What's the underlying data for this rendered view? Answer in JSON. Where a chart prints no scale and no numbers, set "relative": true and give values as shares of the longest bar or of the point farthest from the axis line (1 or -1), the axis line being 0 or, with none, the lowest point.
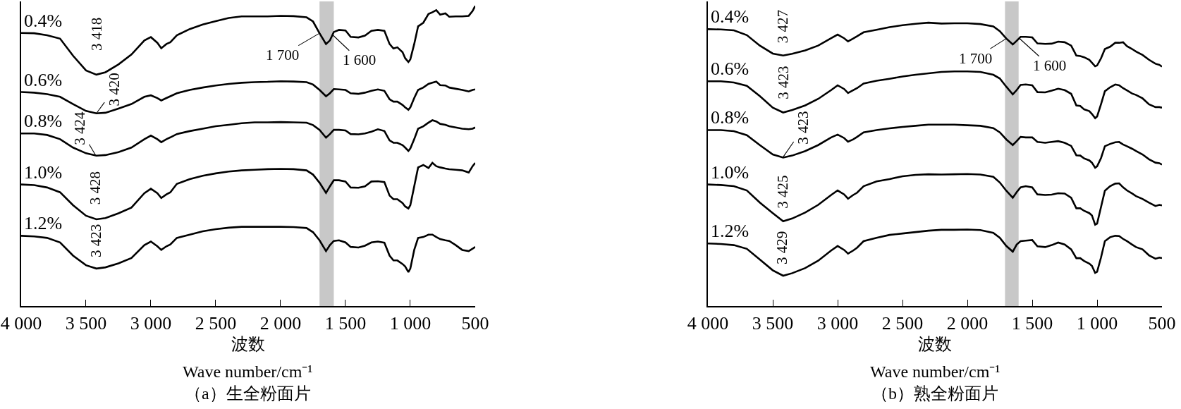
{
  "chart_data": [
    {
      "type": "line",
      "title": "（a）生全粉面片",
      "xlabel": "波数\nWave number/cm⁻¹",
      "relative": true,
      "tick_labels": "x",
      "grid": false,
      "legend": false,
      "marker": "none",
      "line_style": "solid",
      "xlim": [
        4000,
        500
      ],
      "xticks": [
        {
          "value": 4000,
          "label": "4 000"
        },
        {
          "value": 3500,
          "label": "3 500"
        },
        {
          "value": 3000,
          "label": "3 000"
        },
        {
          "value": 2500,
          "label": "2 500"
        },
        {
          "value": 2000,
          "label": "2 000"
        },
        {
          "value": 1500,
          "label": "1 500"
        },
        {
          "value": 1000,
          "label": "1 000"
        },
        500
      ],
      "x": [
        4000,
        3900,
        3800,
        3700,
        3600,
        3500,
        3420,
        3350,
        3250,
        3150,
        3050,
        3000,
        2950,
        2920,
        2880,
        2850,
        2800,
        2700,
        2600,
        2500,
        2400,
        2300,
        2200,
        2100,
        2000,
        1900,
        1800,
        1750,
        1700,
        1650,
        1620,
        1590,
        1550,
        1500,
        1460,
        1400,
        1350,
        1300,
        1250,
        1200,
        1160,
        1130,
        1100,
        1060,
        1040,
        1015,
        1000,
        970,
        940,
        900,
        860,
        830,
        800,
        770,
        730,
        700,
        650,
        600,
        550,
        520,
        500
      ],
      "series": [
        {
          "name": "0.4%",
          "color": "#000000",
          "values": [
            0.91,
            0.909,
            0.902,
            0.891,
            0.834,
            0.785,
            0.771,
            0.779,
            0.805,
            0.838,
            0.885,
            0.896,
            0.877,
            0.859,
            0.873,
            0.879,
            0.902,
            0.923,
            0.938,
            0.949,
            0.96,
            0.965,
            0.965,
            0.965,
            0.967,
            0.966,
            0.962,
            0.948,
            0.909,
            0.873,
            0.885,
            0.913,
            0.92,
            0.918,
            0.897,
            0.895,
            0.901,
            0.917,
            0.92,
            0.917,
            0.873,
            0.858,
            0.862,
            0.846,
            0.826,
            0.813,
            0.822,
            0.873,
            0.932,
            0.944,
            0.973,
            0.979,
            0.986,
            0.971,
            0.975,
            0.964,
            0.965,
            0.965,
            0.967,
            0.983,
            1.0
          ]
        },
        {
          "name": "0.6%",
          "color": "#000000",
          "values": [
            0.713,
            0.711,
            0.706,
            0.697,
            0.673,
            0.65,
            0.642,
            0.644,
            0.658,
            0.673,
            0.697,
            0.702,
            0.693,
            0.685,
            0.693,
            0.699,
            0.709,
            0.72,
            0.728,
            0.735,
            0.74,
            0.744,
            0.746,
            0.747,
            0.749,
            0.748,
            0.746,
            0.738,
            0.72,
            0.699,
            0.709,
            0.723,
            0.722,
            0.72,
            0.709,
            0.707,
            0.711,
            0.717,
            0.722,
            0.717,
            0.689,
            0.681,
            0.681,
            0.67,
            0.662,
            0.654,
            0.662,
            0.693,
            0.72,
            0.728,
            0.74,
            0.744,
            0.748,
            0.736,
            0.735,
            0.728,
            0.724,
            0.72,
            0.715,
            0.72,
            0.722
          ]
        },
        {
          "name": "0.8%",
          "color": "#000000",
          "values": [
            0.575,
            0.575,
            0.57,
            0.556,
            0.528,
            0.509,
            0.501,
            0.503,
            0.513,
            0.528,
            0.556,
            0.568,
            0.556,
            0.546,
            0.556,
            0.562,
            0.573,
            0.583,
            0.591,
            0.599,
            0.604,
            0.609,
            0.612,
            0.612,
            0.613,
            0.612,
            0.611,
            0.603,
            0.587,
            0.561,
            0.573,
            0.587,
            0.587,
            0.585,
            0.573,
            0.572,
            0.575,
            0.581,
            0.589,
            0.583,
            0.552,
            0.544,
            0.544,
            0.536,
            0.528,
            0.517,
            0.525,
            0.556,
            0.591,
            0.599,
            0.611,
            0.619,
            0.615,
            0.607,
            0.604,
            0.599,
            0.595,
            0.591,
            0.589,
            0.591,
            0.595
          ]
        },
        {
          "name": "1.0%",
          "color": "#000000",
          "values": [
            0.405,
            0.403,
            0.395,
            0.379,
            0.336,
            0.301,
            0.289,
            0.293,
            0.309,
            0.328,
            0.376,
            0.391,
            0.376,
            0.36,
            0.372,
            0.379,
            0.407,
            0.423,
            0.434,
            0.442,
            0.448,
            0.452,
            0.454,
            0.456,
            0.457,
            0.456,
            0.452,
            0.438,
            0.411,
            0.377,
            0.399,
            0.419,
            0.419,
            0.415,
            0.395,
            0.394,
            0.399,
            0.415,
            0.416,
            0.413,
            0.368,
            0.356,
            0.356,
            0.343,
            0.332,
            0.325,
            0.336,
            0.399,
            0.462,
            0.47,
            0.46,
            0.477,
            0.466,
            0.462,
            0.458,
            0.456,
            0.454,
            0.452,
            0.445,
            0.466,
            0.477
          ]
        },
        {
          "name": "1.2%",
          "color": "#000000",
          "values": [
            0.234,
            0.232,
            0.227,
            0.212,
            0.168,
            0.136,
            0.125,
            0.129,
            0.142,
            0.16,
            0.203,
            0.215,
            0.199,
            0.187,
            0.199,
            0.205,
            0.227,
            0.238,
            0.249,
            0.256,
            0.261,
            0.264,
            0.264,
            0.264,
            0.264,
            0.263,
            0.26,
            0.246,
            0.219,
            0.183,
            0.203,
            0.217,
            0.219,
            0.212,
            0.197,
            0.195,
            0.201,
            0.212,
            0.215,
            0.211,
            0.168,
            0.152,
            0.152,
            0.14,
            0.132,
            0.113,
            0.125,
            0.187,
            0.227,
            0.23,
            0.238,
            0.238,
            0.23,
            0.223,
            0.219,
            0.217,
            0.203,
            0.187,
            0.183,
            0.191,
            0.197
          ]
        }
      ],
      "annotations": [
        {
          "text": "3 418",
          "x": 3418,
          "y": 0.771
        },
        {
          "text": "3 420",
          "x": 3420,
          "y": 0.642
        },
        {
          "text": "3 424",
          "x": 3424,
          "y": 0.501
        },
        {
          "text": "3 428",
          "x": 3428,
          "y": 0.289
        },
        {
          "text": "3 423",
          "x": 3423,
          "y": 0.125
        },
        {
          "text": "1 700",
          "x": 1700,
          "y": 0.909
        },
        {
          "text": "1 600",
          "x": 1600,
          "y": 0.904
        }
      ],
      "bands": [
        {
          "axis": "x",
          "from": 1700,
          "to": 1590,
          "color": "#c8c8c8"
        }
      ]
    },
    {
      "type": "line",
      "title": "（b）熟全粉面片",
      "xlabel": "波数\nWave number/cm⁻¹",
      "relative": true,
      "tick_labels": "x",
      "grid": false,
      "legend": false,
      "marker": "none",
      "line_style": "solid",
      "xlim": [
        4000,
        500
      ],
      "xticks": [
        {
          "value": 4000,
          "label": "4 000"
        },
        {
          "value": 3500,
          "label": "3 500"
        },
        {
          "value": 3000,
          "label": "3 000"
        },
        {
          "value": 2500,
          "label": "2 500"
        },
        {
          "value": 2000,
          "label": "2 000"
        },
        {
          "value": 1500,
          "label": "1 500"
        },
        {
          "value": 1000,
          "label": "1 000"
        },
        500
      ],
      "x": [
        4000,
        3900,
        3800,
        3700,
        3600,
        3500,
        3420,
        3350,
        3250,
        3150,
        3050,
        3000,
        2950,
        2920,
        2880,
        2850,
        2800,
        2700,
        2600,
        2500,
        2400,
        2300,
        2200,
        2100,
        2000,
        1900,
        1800,
        1750,
        1700,
        1650,
        1620,
        1590,
        1550,
        1500,
        1460,
        1400,
        1350,
        1300,
        1250,
        1200,
        1160,
        1130,
        1100,
        1060,
        1040,
        1015,
        1000,
        970,
        940,
        900,
        860,
        830,
        800,
        770,
        730,
        700,
        650,
        600,
        550,
        520,
        500
      ],
      "series": [
        {
          "name": "0.4%",
          "color": "#000000",
          "values": [
            0.977,
            0.976,
            0.973,
            0.956,
            0.919,
            0.891,
            0.884,
            0.89,
            0.902,
            0.919,
            0.945,
            0.958,
            0.945,
            0.934,
            0.944,
            0.952,
            0.966,
            0.975,
            0.984,
            0.991,
            0.996,
            1.0,
            0.997,
            0.998,
            0.998,
            0.995,
            0.987,
            0.97,
            0.944,
            0.923,
            0.936,
            0.95,
            0.95,
            0.948,
            0.927,
            0.925,
            0.926,
            0.933,
            0.931,
            0.919,
            0.884,
            0.882,
            0.878,
            0.869,
            0.859,
            0.846,
            0.849,
            0.874,
            0.907,
            0.915,
            0.929,
            0.929,
            0.931,
            0.917,
            0.907,
            0.898,
            0.886,
            0.869,
            0.855,
            0.851,
            0.845
          ]
        },
        {
          "name": "0.6%",
          "color": "#000000",
          "values": [
            0.793,
            0.793,
            0.789,
            0.777,
            0.741,
            0.7,
            0.683,
            0.692,
            0.708,
            0.731,
            0.762,
            0.779,
            0.766,
            0.752,
            0.762,
            0.769,
            0.785,
            0.795,
            0.802,
            0.81,
            0.816,
            0.821,
            0.826,
            0.828,
            0.828,
            0.826,
            0.816,
            0.803,
            0.774,
            0.747,
            0.762,
            0.78,
            0.782,
            0.779,
            0.755,
            0.754,
            0.76,
            0.767,
            0.762,
            0.749,
            0.708,
            0.706,
            0.694,
            0.688,
            0.678,
            0.663,
            0.669,
            0.712,
            0.758,
            0.772,
            0.782,
            0.779,
            0.769,
            0.761,
            0.75,
            0.745,
            0.733,
            0.712,
            0.702,
            0.702,
            0.7
          ]
        },
        {
          "name": "0.8%",
          "color": "#000000",
          "values": [
            0.621,
            0.621,
            0.617,
            0.603,
            0.568,
            0.535,
            0.524,
            0.531,
            0.547,
            0.568,
            0.595,
            0.605,
            0.593,
            0.58,
            0.588,
            0.597,
            0.613,
            0.621,
            0.627,
            0.632,
            0.636,
            0.64,
            0.64,
            0.64,
            0.638,
            0.636,
            0.628,
            0.613,
            0.588,
            0.568,
            0.582,
            0.597,
            0.595,
            0.595,
            0.579,
            0.576,
            0.579,
            0.582,
            0.576,
            0.565,
            0.532,
            0.531,
            0.521,
            0.514,
            0.506,
            0.488,
            0.493,
            0.522,
            0.564,
            0.572,
            0.578,
            0.579,
            0.57,
            0.564,
            0.555,
            0.547,
            0.535,
            0.518,
            0.506,
            0.504,
            0.499
          ]
        },
        {
          "name": "1.0%",
          "color": "#000000",
          "values": [
            0.429,
            0.427,
            0.423,
            0.408,
            0.365,
            0.328,
            0.299,
            0.309,
            0.33,
            0.357,
            0.392,
            0.408,
            0.394,
            0.379,
            0.392,
            0.4,
            0.423,
            0.44,
            0.448,
            0.458,
            0.463,
            0.465,
            0.464,
            0.465,
            0.466,
            0.464,
            0.456,
            0.436,
            0.407,
            0.382,
            0.402,
            0.419,
            0.423,
            0.419,
            0.394,
            0.392,
            0.393,
            0.398,
            0.397,
            0.382,
            0.345,
            0.345,
            0.336,
            0.328,
            0.32,
            0.287,
            0.291,
            0.349,
            0.407,
            0.423,
            0.432,
            0.433,
            0.419,
            0.408,
            0.397,
            0.388,
            0.378,
            0.365,
            0.353,
            0.357,
            0.355
          ]
        },
        {
          "name": "1.2%",
          "color": "#000000",
          "values": [
            0.221,
            0.219,
            0.215,
            0.202,
            0.164,
            0.126,
            0.107,
            0.116,
            0.134,
            0.16,
            0.196,
            0.212,
            0.198,
            0.185,
            0.196,
            0.206,
            0.229,
            0.241,
            0.251,
            0.256,
            0.261,
            0.266,
            0.269,
            0.269,
            0.27,
            0.268,
            0.258,
            0.241,
            0.212,
            0.192,
            0.217,
            0.229,
            0.231,
            0.233,
            0.211,
            0.208,
            0.215,
            0.224,
            0.217,
            0.2,
            0.169,
            0.169,
            0.159,
            0.15,
            0.142,
            0.117,
            0.121,
            0.171,
            0.229,
            0.243,
            0.248,
            0.247,
            0.237,
            0.229,
            0.217,
            0.208,
            0.2,
            0.179,
            0.167,
            0.171,
            0.169
          ]
        }
      ],
      "annotations": [
        {
          "text": "3 427",
          "x": 3427,
          "y": 0.884
        },
        {
          "text": "3 423",
          "x": 3423,
          "y": 0.683
        },
        {
          "text": "3 423",
          "x": 3423,
          "y": 0.524
        },
        {
          "text": "3 425",
          "x": 3425,
          "y": 0.299
        },
        {
          "text": "3 429",
          "x": 3429,
          "y": 0.107
        },
        {
          "text": "1 700",
          "x": 1700,
          "y": 0.944
        },
        {
          "text": "1 600",
          "x": 1600,
          "y": 0.945
        }
      ],
      "bands": [
        {
          "axis": "x",
          "from": 1710,
          "to": 1605,
          "color": "#c8c8c8"
        }
      ]
    }
  ]
}
